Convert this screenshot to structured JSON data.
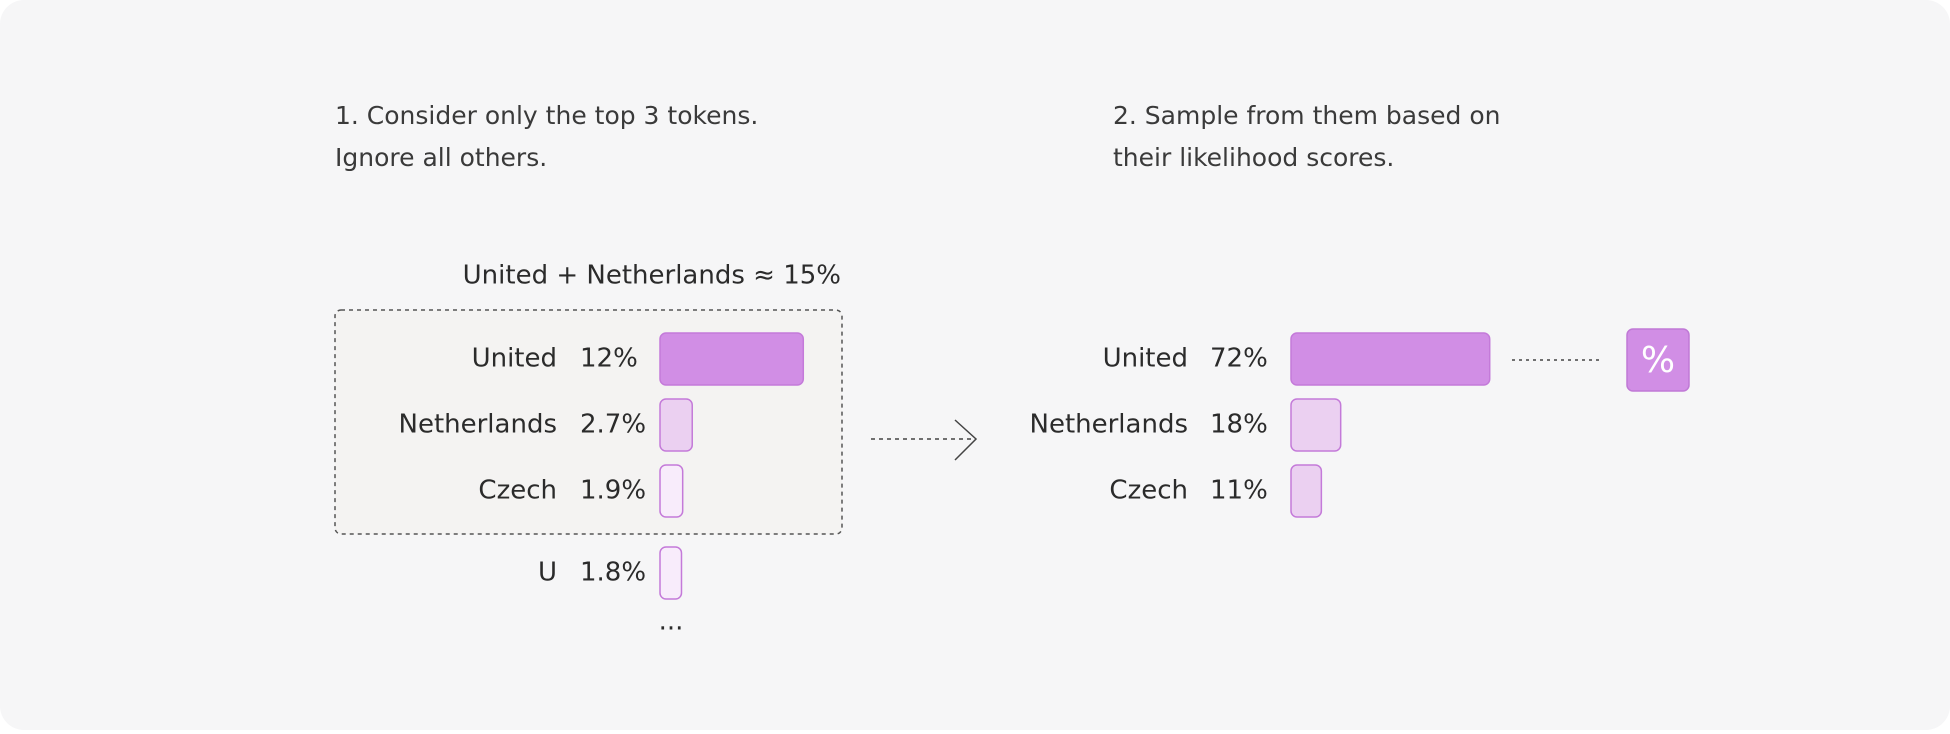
{
  "steps": [
    {
      "lines": [
        "1. Consider only the top 3 tokens.",
        "Ignore all others."
      ]
    },
    {
      "lines": [
        "2. Sample from them based on",
        "their likelihood scores."
      ]
    }
  ],
  "left": {
    "annotation": "United + Netherlands ≈ 15%",
    "rows": [
      {
        "token": "United",
        "value": 12,
        "value_label": "12%",
        "color": "#d18ee5"
      },
      {
        "token": "Netherlands",
        "value": 2.7,
        "value_label": "2.7%",
        "color": "#ebd0f1"
      },
      {
        "token": "Czech",
        "value": 1.9,
        "value_label": "1.9%",
        "color": "#f8ecfb"
      },
      {
        "token": "U",
        "value": 1.8,
        "value_label": "1.8%",
        "color": "#f8ecfb"
      }
    ],
    "ellipsis": "..."
  },
  "right": {
    "rows": [
      {
        "token": "United",
        "value": 72,
        "value_label": "72%",
        "color": "#d18ee5"
      },
      {
        "token": "Netherlands",
        "value": 18,
        "value_label": "18%",
        "color": "#ebd0f1"
      },
      {
        "token": "Czech",
        "value": 11,
        "value_label": "11%",
        "color": "#ebd0f1"
      }
    ],
    "icon": "%"
  }
}
